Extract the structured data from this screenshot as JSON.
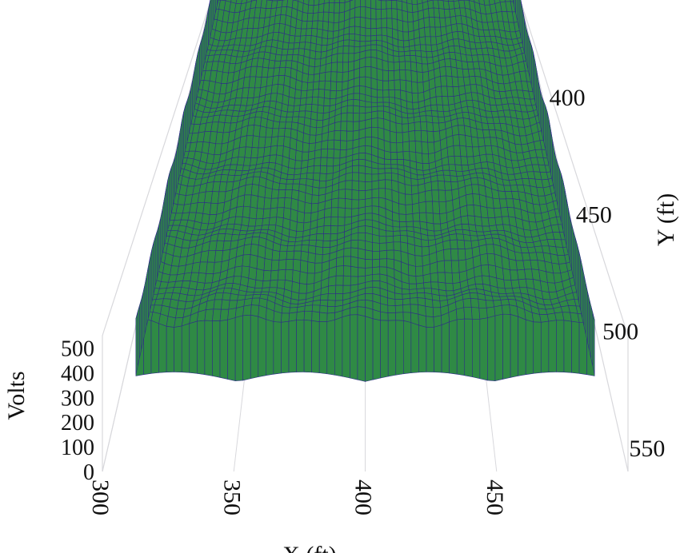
{
  "chart_data": {
    "type": "surface3d",
    "title": "",
    "xlabel": "X (ft)",
    "ylabel": "Y (ft)",
    "zlabel": "Volts",
    "x_ticks": [
      "300",
      "350",
      "400",
      "450"
    ],
    "y_ticks": [
      "400",
      "450",
      "500",
      "550"
    ],
    "z_ticks": [
      "0",
      "100",
      "200",
      "300",
      "400",
      "500"
    ],
    "xlim": [
      300,
      500
    ],
    "ylim": [
      360,
      560
    ],
    "zlim": [
      0,
      550
    ],
    "surface": {
      "base_level": 480,
      "ridge_spacing_x": 50,
      "ridge_spacing_y": 30,
      "ripple_amplitude": 25,
      "edge_drop_to": 200
    },
    "colors": {
      "surface": "#2f8a45",
      "mesh": "#2e2f86",
      "grid": "#d8d8dc",
      "text": "#111111"
    },
    "grid": true
  }
}
